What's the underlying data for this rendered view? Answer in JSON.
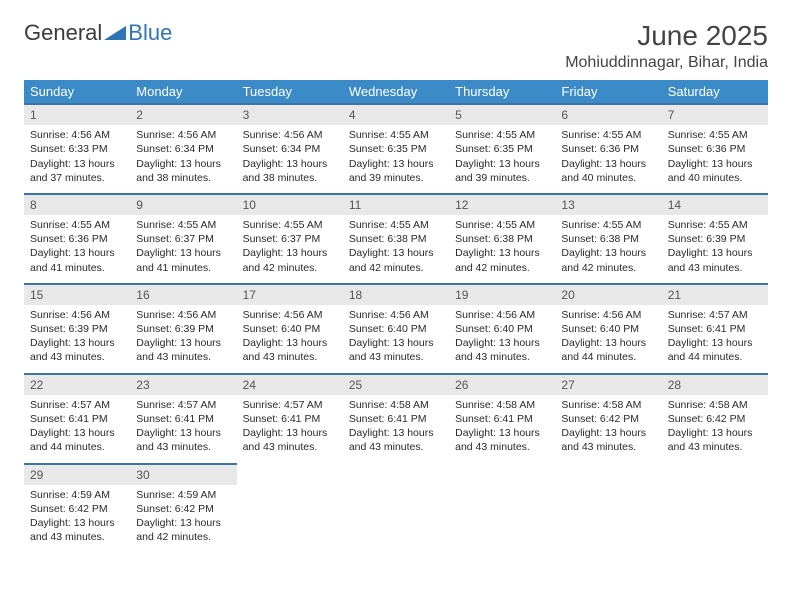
{
  "brand": {
    "part1": "General",
    "part2": "Blue"
  },
  "colors": {
    "header_bg": "#3b8bc9",
    "header_text": "#ffffff",
    "daynum_bg": "#e8e8e8",
    "daynum_border": "#3b74a8",
    "text": "#2a2a2a",
    "logo_tri": "#2e75b6"
  },
  "month_title": "June 2025",
  "location": "Mohiuddinnagar, Bihar, India",
  "weekdays": [
    "Sunday",
    "Monday",
    "Tuesday",
    "Wednesday",
    "Thursday",
    "Friday",
    "Saturday"
  ],
  "cells": [
    {
      "n": "1",
      "sr": "4:56 AM",
      "ss": "6:33 PM",
      "dl": "13 hours and 37 minutes."
    },
    {
      "n": "2",
      "sr": "4:56 AM",
      "ss": "6:34 PM",
      "dl": "13 hours and 38 minutes."
    },
    {
      "n": "3",
      "sr": "4:56 AM",
      "ss": "6:34 PM",
      "dl": "13 hours and 38 minutes."
    },
    {
      "n": "4",
      "sr": "4:55 AM",
      "ss": "6:35 PM",
      "dl": "13 hours and 39 minutes."
    },
    {
      "n": "5",
      "sr": "4:55 AM",
      "ss": "6:35 PM",
      "dl": "13 hours and 39 minutes."
    },
    {
      "n": "6",
      "sr": "4:55 AM",
      "ss": "6:36 PM",
      "dl": "13 hours and 40 minutes."
    },
    {
      "n": "7",
      "sr": "4:55 AM",
      "ss": "6:36 PM",
      "dl": "13 hours and 40 minutes."
    },
    {
      "n": "8",
      "sr": "4:55 AM",
      "ss": "6:36 PM",
      "dl": "13 hours and 41 minutes."
    },
    {
      "n": "9",
      "sr": "4:55 AM",
      "ss": "6:37 PM",
      "dl": "13 hours and 41 minutes."
    },
    {
      "n": "10",
      "sr": "4:55 AM",
      "ss": "6:37 PM",
      "dl": "13 hours and 42 minutes."
    },
    {
      "n": "11",
      "sr": "4:55 AM",
      "ss": "6:38 PM",
      "dl": "13 hours and 42 minutes."
    },
    {
      "n": "12",
      "sr": "4:55 AM",
      "ss": "6:38 PM",
      "dl": "13 hours and 42 minutes."
    },
    {
      "n": "13",
      "sr": "4:55 AM",
      "ss": "6:38 PM",
      "dl": "13 hours and 42 minutes."
    },
    {
      "n": "14",
      "sr": "4:55 AM",
      "ss": "6:39 PM",
      "dl": "13 hours and 43 minutes."
    },
    {
      "n": "15",
      "sr": "4:56 AM",
      "ss": "6:39 PM",
      "dl": "13 hours and 43 minutes."
    },
    {
      "n": "16",
      "sr": "4:56 AM",
      "ss": "6:39 PM",
      "dl": "13 hours and 43 minutes."
    },
    {
      "n": "17",
      "sr": "4:56 AM",
      "ss": "6:40 PM",
      "dl": "13 hours and 43 minutes."
    },
    {
      "n": "18",
      "sr": "4:56 AM",
      "ss": "6:40 PM",
      "dl": "13 hours and 43 minutes."
    },
    {
      "n": "19",
      "sr": "4:56 AM",
      "ss": "6:40 PM",
      "dl": "13 hours and 43 minutes."
    },
    {
      "n": "20",
      "sr": "4:56 AM",
      "ss": "6:40 PM",
      "dl": "13 hours and 44 minutes."
    },
    {
      "n": "21",
      "sr": "4:57 AM",
      "ss": "6:41 PM",
      "dl": "13 hours and 44 minutes."
    },
    {
      "n": "22",
      "sr": "4:57 AM",
      "ss": "6:41 PM",
      "dl": "13 hours and 44 minutes."
    },
    {
      "n": "23",
      "sr": "4:57 AM",
      "ss": "6:41 PM",
      "dl": "13 hours and 43 minutes."
    },
    {
      "n": "24",
      "sr": "4:57 AM",
      "ss": "6:41 PM",
      "dl": "13 hours and 43 minutes."
    },
    {
      "n": "25",
      "sr": "4:58 AM",
      "ss": "6:41 PM",
      "dl": "13 hours and 43 minutes."
    },
    {
      "n": "26",
      "sr": "4:58 AM",
      "ss": "6:41 PM",
      "dl": "13 hours and 43 minutes."
    },
    {
      "n": "27",
      "sr": "4:58 AM",
      "ss": "6:42 PM",
      "dl": "13 hours and 43 minutes."
    },
    {
      "n": "28",
      "sr": "4:58 AM",
      "ss": "6:42 PM",
      "dl": "13 hours and 43 minutes."
    },
    {
      "n": "29",
      "sr": "4:59 AM",
      "ss": "6:42 PM",
      "dl": "13 hours and 43 minutes."
    },
    {
      "n": "30",
      "sr": "4:59 AM",
      "ss": "6:42 PM",
      "dl": "13 hours and 42 minutes."
    }
  ],
  "labels": {
    "sunrise": "Sunrise: ",
    "sunset": "Sunset: ",
    "daylight": "Daylight: "
  },
  "layout": {
    "cols": 7,
    "total_slots": 35,
    "lead_blanks": 0
  }
}
